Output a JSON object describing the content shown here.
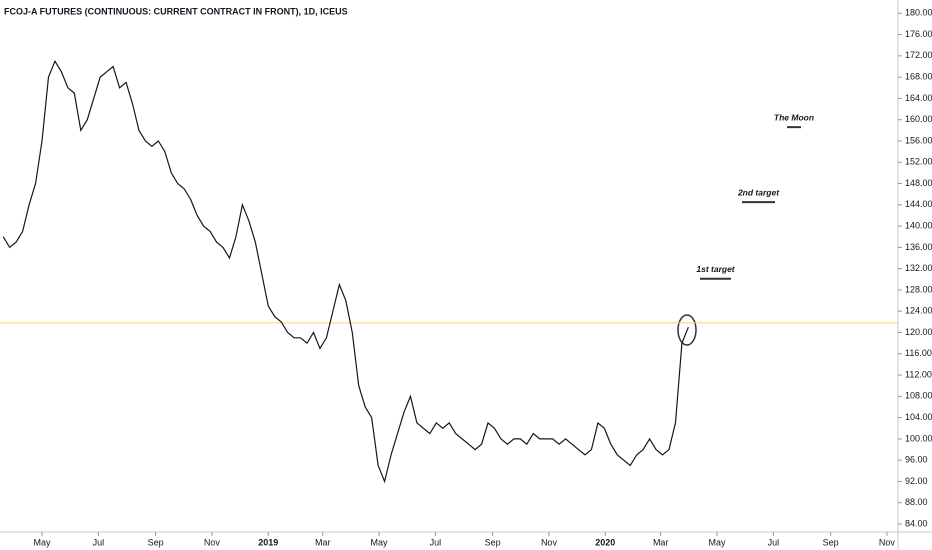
{
  "chart_data": {
    "type": "line",
    "title": "FCOJ-A FUTURES (CONTINUOUS: CURRENT CONTRACT IN FRONT), 1D, ICEUS",
    "x": [
      -42,
      -35,
      -28,
      -21,
      -14,
      -7,
      0,
      7,
      14,
      21,
      28,
      35,
      42,
      49,
      56,
      63,
      70,
      77,
      84,
      91,
      98,
      105,
      112,
      119,
      126,
      133,
      140,
      147,
      154,
      161,
      168,
      175,
      182,
      189,
      196,
      203,
      210,
      217,
      224,
      231,
      238,
      245,
      252,
      259,
      266,
      273,
      280,
      287,
      294,
      301,
      308,
      315,
      322,
      329,
      336,
      343,
      350,
      357,
      364,
      371,
      378,
      385,
      392,
      399,
      406,
      413,
      420,
      427,
      434,
      441,
      448,
      455,
      462,
      469,
      476,
      483,
      490,
      497,
      504,
      511,
      518,
      525,
      532,
      539,
      546,
      553,
      560,
      567,
      574,
      581,
      588,
      595,
      602,
      609,
      616,
      623,
      630,
      637,
      644,
      651,
      658,
      665,
      672,
      679,
      686,
      693,
      700
    ],
    "series": [
      {
        "color": "#131722",
        "values": [
          138,
          136,
          137,
          139,
          144,
          148,
          156,
          168,
          171,
          169,
          166,
          165,
          158,
          160,
          164,
          168,
          169,
          170,
          166,
          167,
          163,
          158,
          156,
          155,
          156,
          154,
          150,
          148,
          147,
          145,
          142,
          140,
          139,
          137,
          136,
          134,
          138,
          144,
          141,
          137,
          131,
          125,
          123,
          122,
          120,
          119,
          119,
          118,
          120,
          117,
          119,
          124,
          129,
          126,
          120,
          110,
          106,
          104,
          95,
          92,
          97,
          101,
          105,
          108,
          103,
          102,
          101,
          103,
          102,
          103,
          101,
          100,
          99,
          98,
          99,
          103,
          102,
          100,
          99,
          100,
          100,
          99,
          101,
          100,
          100,
          100,
          99,
          100,
          99,
          98,
          97,
          98,
          103,
          102,
          99,
          97,
          96,
          95,
          97,
          98,
          100,
          98,
          97,
          98,
          103,
          118,
          121
        ]
      }
    ],
    "xlim": [
      -45.5,
      927
    ],
    "ylim": [
      82.5,
      182.5
    ],
    "xticks": [
      {
        "value": 0,
        "label": "May"
      },
      {
        "value": 61,
        "label": "Jul"
      },
      {
        "value": 123,
        "label": "Sep"
      },
      {
        "value": 184,
        "label": "Nov"
      },
      {
        "value": 245,
        "label": "2019"
      },
      {
        "value": 304,
        "label": "Mar"
      },
      {
        "value": 365,
        "label": "May"
      },
      {
        "value": 426,
        "label": "Jul"
      },
      {
        "value": 488,
        "label": "Sep"
      },
      {
        "value": 549,
        "label": "Nov"
      },
      {
        "value": 610,
        "label": "2020"
      },
      {
        "value": 670,
        "label": "Mar"
      },
      {
        "value": 731,
        "label": "May"
      },
      {
        "value": 792,
        "label": "Jul"
      },
      {
        "value": 854,
        "label": "Sep"
      },
      {
        "value": 915,
        "label": "Nov"
      }
    ],
    "yticks": [
      {
        "value": 84,
        "label": "84.00"
      },
      {
        "value": 88,
        "label": "88.00"
      },
      {
        "value": 92,
        "label": "92.00"
      },
      {
        "value": 96,
        "label": "96.00"
      },
      {
        "value": 100,
        "label": "100.00"
      },
      {
        "value": 104,
        "label": "104.00"
      },
      {
        "value": 108,
        "label": "108.00"
      },
      {
        "value": 112,
        "label": "112.00"
      },
      {
        "value": 116,
        "label": "116.00"
      },
      {
        "value": 120,
        "label": "120.00"
      },
      {
        "value": 124,
        "label": "124.00"
      },
      {
        "value": 128,
        "label": "128.00"
      },
      {
        "value": 132,
        "label": "132.00"
      },
      {
        "value": 136,
        "label": "136.00"
      },
      {
        "value": 140,
        "label": "140.00"
      },
      {
        "value": 144,
        "label": "144.00"
      },
      {
        "value": 148,
        "label": "148.00"
      },
      {
        "value": 152,
        "label": "152.00"
      },
      {
        "value": 156,
        "label": "156.00"
      },
      {
        "value": 160,
        "label": "160.00"
      },
      {
        "value": 164,
        "label": "164.00"
      },
      {
        "value": 168,
        "label": "168.00"
      },
      {
        "value": 172,
        "label": "172.00"
      },
      {
        "value": 176,
        "label": "176.00"
      },
      {
        "value": 180,
        "label": "180.00"
      }
    ],
    "hline": {
      "value": 121.8,
      "color": "#f2d37e"
    },
    "annotations": [
      {
        "text": "The Moon",
        "value": 158.6
      },
      {
        "text": "2nd target",
        "value": 144.5
      },
      {
        "text": "1st target",
        "value": 130.1
      }
    ]
  }
}
